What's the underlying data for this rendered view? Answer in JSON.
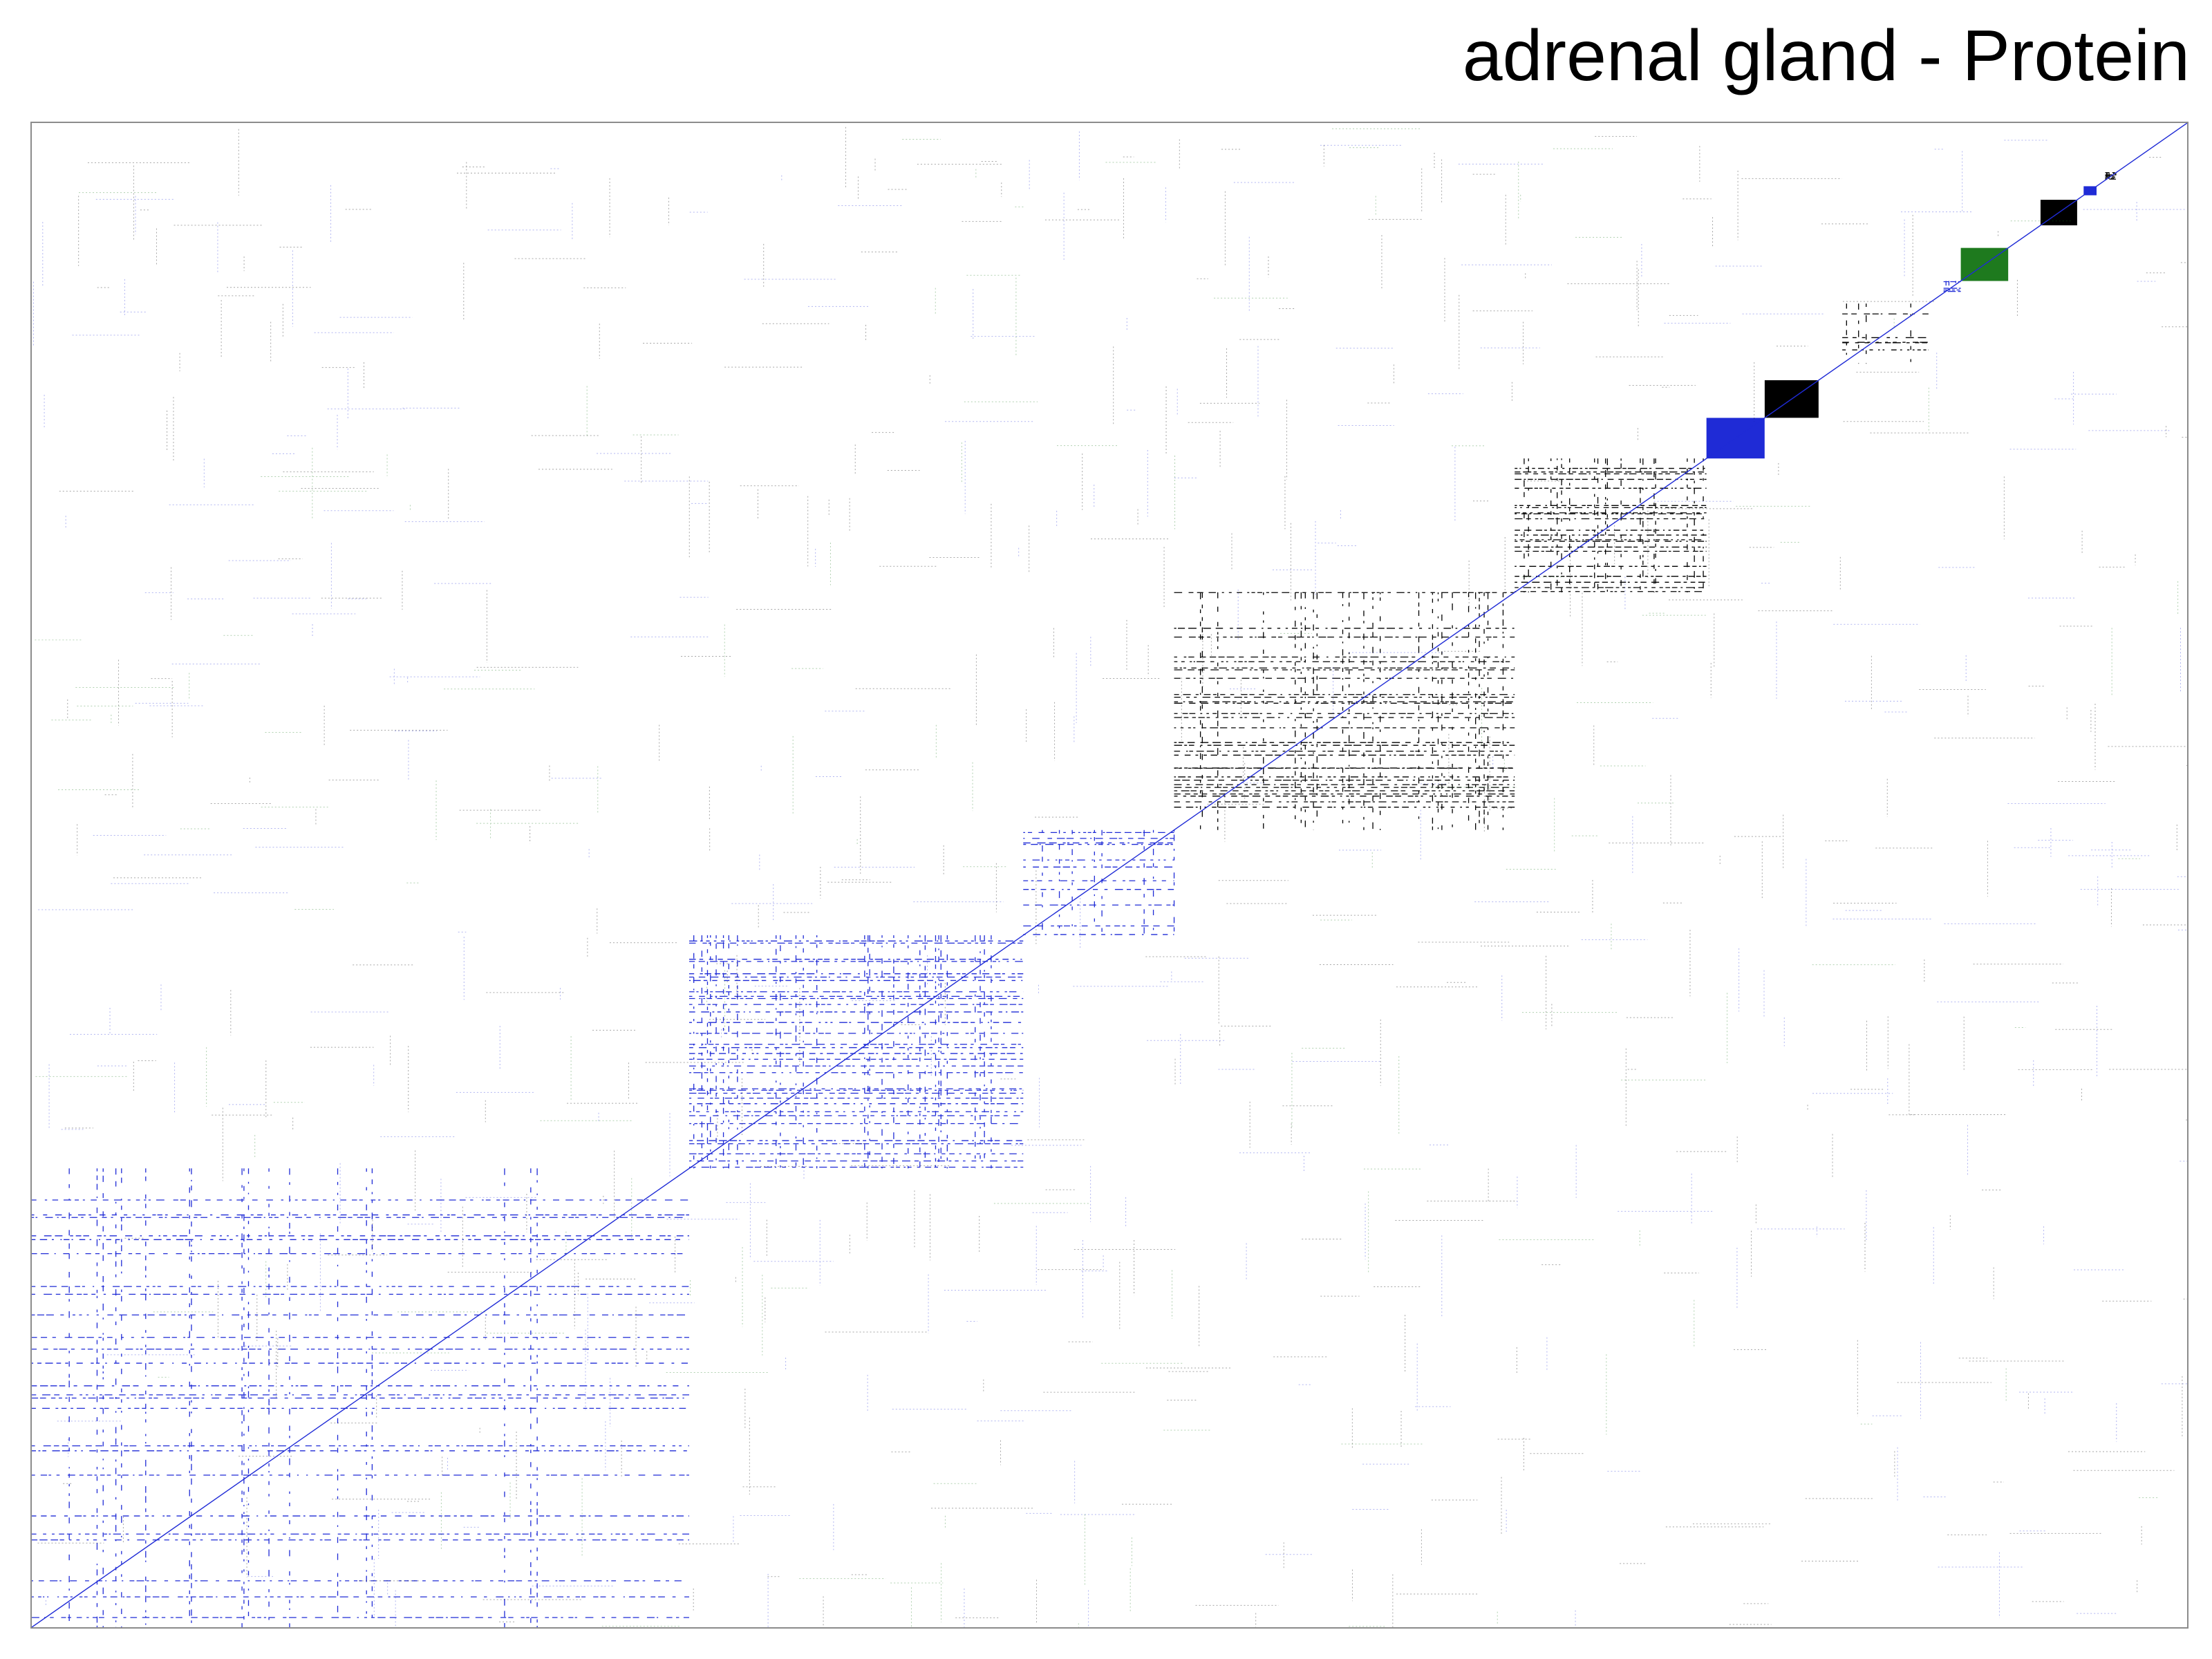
{
  "chart_data": {
    "type": "heatmap",
    "title": "adrenal gland - Protein",
    "xlabel": "",
    "ylabel": "",
    "grid": false,
    "legend": "none",
    "matrix": "sparse co-expression adjacency matrix, genes ordered by module along both axes",
    "diagonal": true,
    "colors": {
      "black": "#000000",
      "blue": "#1f2bd6",
      "green": "#1e7a1e",
      "red": "#c0392b",
      "frame": "#8c8c8c"
    },
    "modules": [
      {
        "id": 1,
        "start": 0.0,
        "end": 0.305,
        "color": "blue",
        "density": 0.22
      },
      {
        "id": 2,
        "start": 0.305,
        "end": 0.46,
        "color": "blue",
        "density": 0.42
      },
      {
        "id": 3,
        "start": 0.46,
        "end": 0.53,
        "color": "blue",
        "density": 0.3
      },
      {
        "id": 4,
        "start": 0.53,
        "end": 0.688,
        "color": "black",
        "density": 0.4
      },
      {
        "id": 5,
        "start": 0.688,
        "end": 0.777,
        "color": "black",
        "density": 0.55
      },
      {
        "id": 6,
        "start": 0.777,
        "end": 0.804,
        "color": "blue",
        "density": 0.95
      },
      {
        "id": 7,
        "start": 0.804,
        "end": 0.829,
        "color": "black",
        "density": 0.97
      },
      {
        "id": 8,
        "start": 0.84,
        "end": 0.88,
        "color": "black",
        "density": 0.25
      },
      {
        "id": 9,
        "start": 0.887,
        "end": 0.895,
        "color": "blue",
        "density": 0.8
      },
      {
        "id": 10,
        "start": 0.895,
        "end": 0.917,
        "color": "green",
        "density": 0.9
      },
      {
        "id": 11,
        "start": 0.932,
        "end": 0.949,
        "color": "black",
        "density": 0.97
      },
      {
        "id": 12,
        "start": 0.952,
        "end": 0.958,
        "color": "blue",
        "density": 0.9
      },
      {
        "id": 13,
        "start": 0.962,
        "end": 0.967,
        "color": "black",
        "density": 0.8
      }
    ]
  }
}
